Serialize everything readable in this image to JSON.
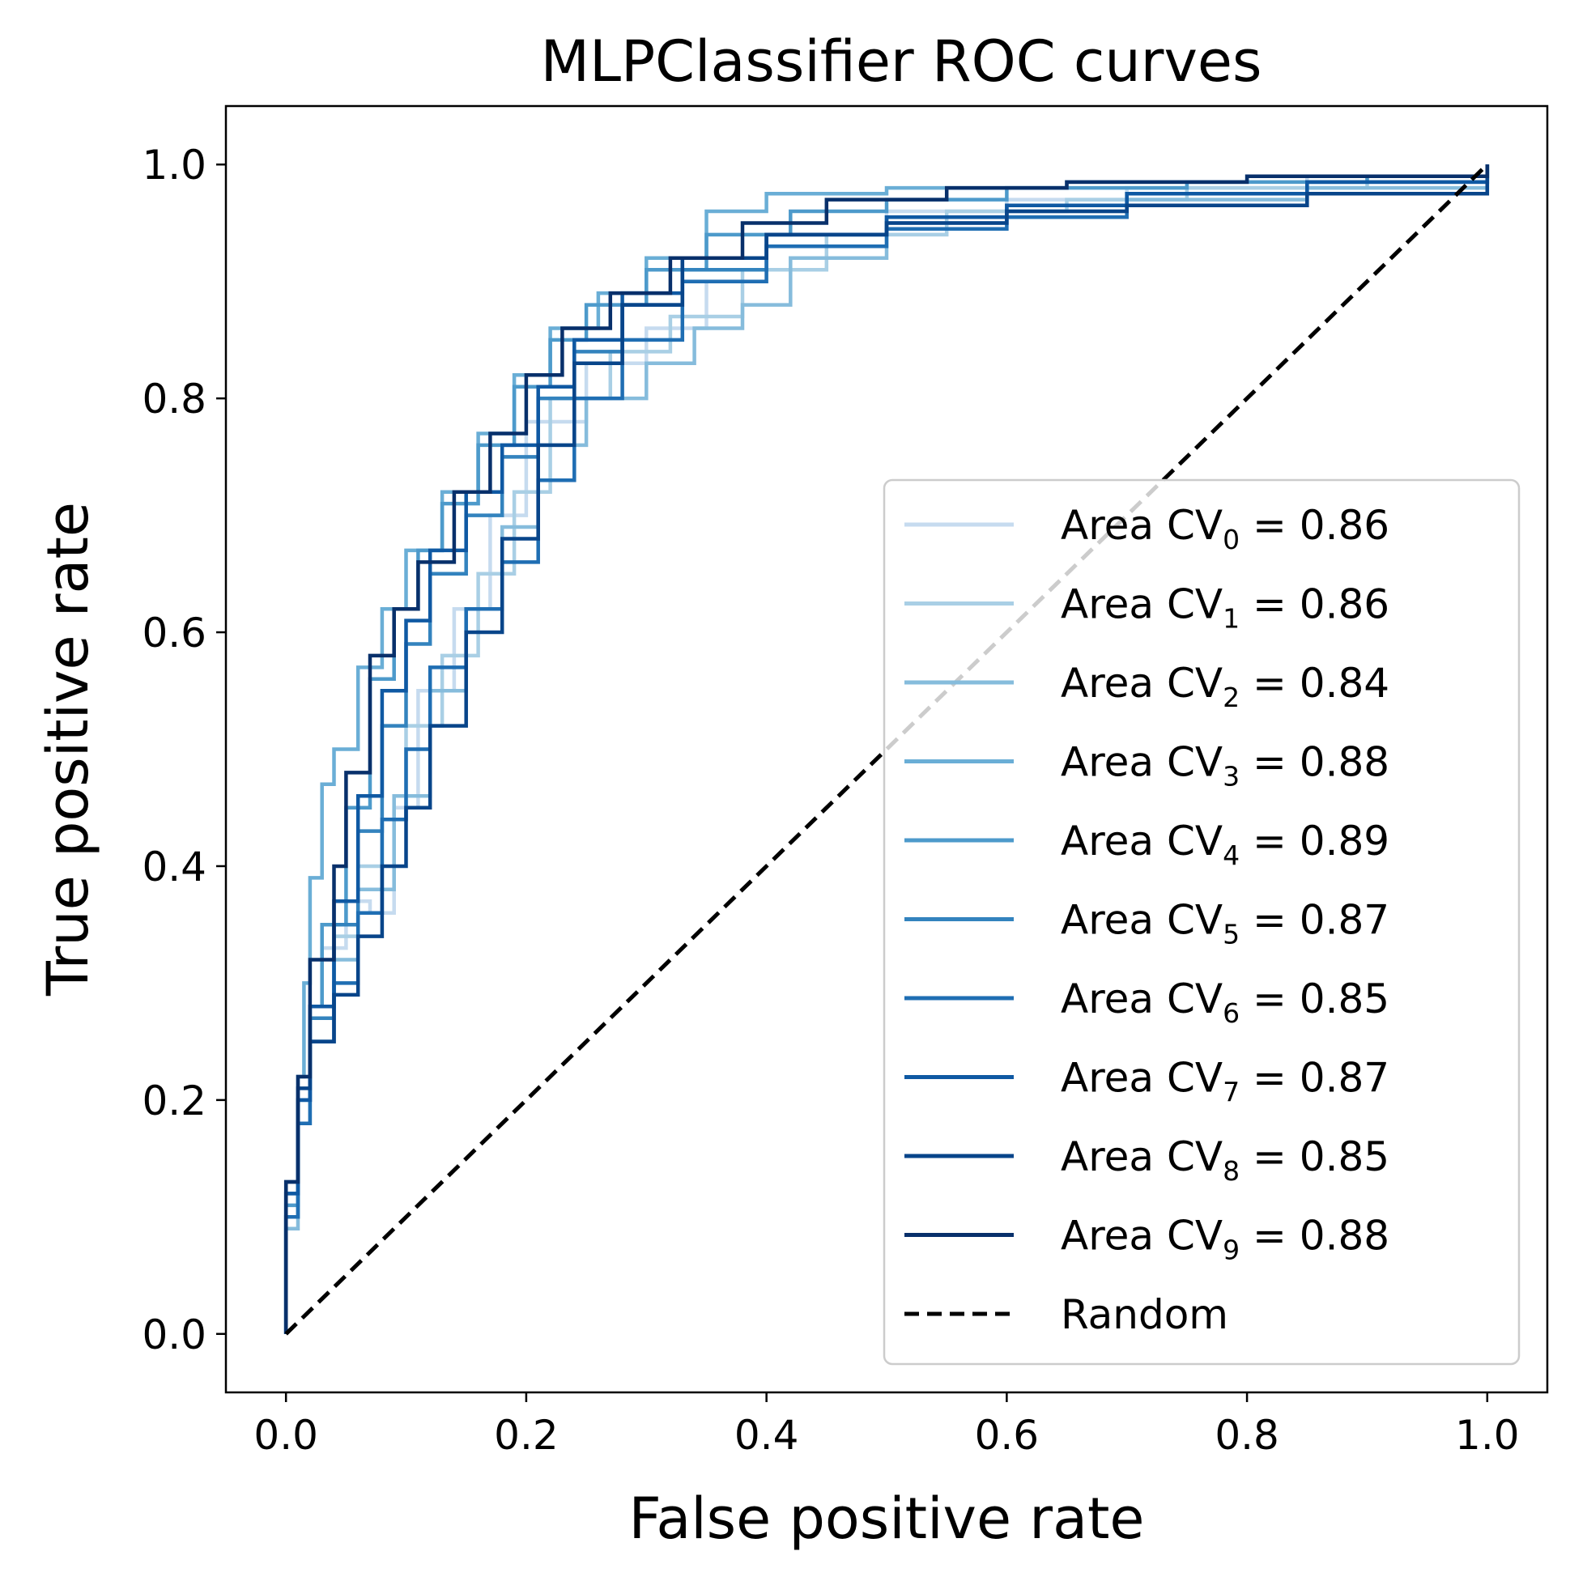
{
  "chart_data": {
    "type": "line",
    "title": "MLPClassifier ROC curves",
    "xlabel": "False positive rate",
    "ylabel": "True positive rate",
    "xlim": [
      -0.05,
      1.05
    ],
    "ylim": [
      -0.05,
      1.05
    ],
    "xticks": [
      "0.0",
      "0.2",
      "0.4",
      "0.6",
      "0.8",
      "1.0"
    ],
    "yticks": [
      "0.0",
      "0.2",
      "0.4",
      "0.6",
      "0.8",
      "1.0"
    ],
    "grid": false,
    "legend_position": "lower-right",
    "series": [
      {
        "name": "Area CV",
        "index": "0",
        "value_text": " = 0.86",
        "color": "#c6dbef",
        "x": [
          0,
          0,
          0.01,
          0.02,
          0.03,
          0.05,
          0.07,
          0.09,
          0.11,
          0.14,
          0.17,
          0.2,
          0.25,
          0.3,
          0.35,
          0.4,
          0.5,
          0.6,
          0.7,
          0.85,
          1.0
        ],
        "y": [
          0,
          0.1,
          0.2,
          0.28,
          0.33,
          0.37,
          0.36,
          0.45,
          0.55,
          0.62,
          0.7,
          0.78,
          0.83,
          0.86,
          0.9,
          0.94,
          0.96,
          0.97,
          0.98,
          0.99,
          1.0
        ]
      },
      {
        "name": "Area CV",
        "index": "1",
        "value_text": " = 0.86",
        "color": "#a9cfe5",
        "x": [
          0,
          0,
          0.01,
          0.02,
          0.04,
          0.06,
          0.08,
          0.1,
          0.13,
          0.16,
          0.19,
          0.22,
          0.27,
          0.32,
          0.38,
          0.45,
          0.55,
          0.65,
          0.75,
          0.9,
          1.0
        ],
        "y": [
          0,
          0.12,
          0.22,
          0.27,
          0.34,
          0.4,
          0.44,
          0.52,
          0.58,
          0.65,
          0.72,
          0.8,
          0.84,
          0.87,
          0.91,
          0.94,
          0.96,
          0.97,
          0.98,
          0.99,
          1.0
        ]
      },
      {
        "name": "Area CV",
        "index": "2",
        "value_text": " = 0.84",
        "color": "#86bcdc",
        "x": [
          0,
          0,
          0.01,
          0.02,
          0.04,
          0.06,
          0.09,
          0.12,
          0.15,
          0.18,
          0.21,
          0.25,
          0.3,
          0.34,
          0.38,
          0.42,
          0.5,
          0.6,
          0.7,
          0.85,
          1.0
        ],
        "y": [
          0,
          0.09,
          0.18,
          0.25,
          0.32,
          0.38,
          0.46,
          0.55,
          0.62,
          0.69,
          0.76,
          0.8,
          0.83,
          0.86,
          0.88,
          0.92,
          0.95,
          0.96,
          0.97,
          0.98,
          1.0
        ]
      },
      {
        "name": "Area CV",
        "index": "3",
        "value_text": " = 0.88",
        "color": "#6aaed6",
        "x": [
          0,
          0,
          0.01,
          0.015,
          0.02,
          0.03,
          0.04,
          0.06,
          0.08,
          0.1,
          0.13,
          0.16,
          0.19,
          0.22,
          0.26,
          0.3,
          0.35,
          0.4,
          0.5,
          0.65,
          0.8,
          1.0
        ],
        "y": [
          0,
          0.12,
          0.22,
          0.3,
          0.39,
          0.47,
          0.5,
          0.57,
          0.62,
          0.67,
          0.72,
          0.77,
          0.82,
          0.86,
          0.89,
          0.92,
          0.96,
          0.975,
          0.98,
          0.985,
          0.99,
          1.0
        ]
      },
      {
        "name": "Area CV",
        "index": "4",
        "value_text": " = 0.89",
        "color": "#4d9acb",
        "x": [
          0,
          0,
          0.01,
          0.02,
          0.03,
          0.05,
          0.07,
          0.09,
          0.11,
          0.13,
          0.16,
          0.19,
          0.22,
          0.25,
          0.3,
          0.35,
          0.42,
          0.5,
          0.6,
          0.75,
          0.9,
          1.0
        ],
        "y": [
          0,
          0.11,
          0.2,
          0.28,
          0.35,
          0.45,
          0.56,
          0.62,
          0.67,
          0.71,
          0.76,
          0.81,
          0.85,
          0.88,
          0.91,
          0.94,
          0.96,
          0.97,
          0.98,
          0.985,
          0.99,
          1.0
        ]
      },
      {
        "name": "Area CV",
        "index": "5",
        "value_text": " = 0.87",
        "color": "#3383be",
        "x": [
          0,
          0,
          0.01,
          0.02,
          0.04,
          0.06,
          0.08,
          0.1,
          0.12,
          0.15,
          0.18,
          0.21,
          0.24,
          0.28,
          0.33,
          0.4,
          0.5,
          0.6,
          0.7,
          0.85,
          1.0
        ],
        "y": [
          0,
          0.1,
          0.2,
          0.27,
          0.35,
          0.43,
          0.52,
          0.59,
          0.65,
          0.7,
          0.75,
          0.8,
          0.84,
          0.88,
          0.91,
          0.94,
          0.955,
          0.965,
          0.975,
          0.985,
          1.0
        ]
      },
      {
        "name": "Area CV",
        "index": "6",
        "value_text": " = 0.85",
        "color": "#1f6eb3",
        "x": [
          0,
          0,
          0.01,
          0.02,
          0.04,
          0.06,
          0.08,
          0.1,
          0.12,
          0.15,
          0.18,
          0.21,
          0.24,
          0.28,
          0.33,
          0.4,
          0.5,
          0.6,
          0.7,
          0.85,
          1.0
        ],
        "y": [
          0,
          0.1,
          0.18,
          0.25,
          0.3,
          0.36,
          0.44,
          0.5,
          0.57,
          0.62,
          0.66,
          0.73,
          0.8,
          0.85,
          0.9,
          0.93,
          0.945,
          0.955,
          0.965,
          0.975,
          1.0
        ]
      },
      {
        "name": "Area CV",
        "index": "7",
        "value_text": " = 0.87",
        "color": "#0f59a3",
        "x": [
          0,
          0,
          0.01,
          0.02,
          0.04,
          0.06,
          0.08,
          0.1,
          0.12,
          0.15,
          0.18,
          0.21,
          0.24,
          0.28,
          0.33,
          0.4,
          0.5,
          0.6,
          0.7,
          0.85,
          1.0
        ],
        "y": [
          0,
          0.12,
          0.2,
          0.28,
          0.37,
          0.46,
          0.55,
          0.61,
          0.67,
          0.72,
          0.76,
          0.81,
          0.85,
          0.89,
          0.92,
          0.94,
          0.955,
          0.965,
          0.975,
          0.985,
          1.0
        ]
      },
      {
        "name": "Area CV",
        "index": "8",
        "value_text": " = 0.85",
        "color": "#08458a",
        "x": [
          0,
          0,
          0.01,
          0.02,
          0.04,
          0.06,
          0.08,
          0.1,
          0.12,
          0.15,
          0.18,
          0.21,
          0.24,
          0.28,
          0.33,
          0.4,
          0.5,
          0.6,
          0.7,
          0.85,
          1.0
        ],
        "y": [
          0,
          0.13,
          0.21,
          0.25,
          0.29,
          0.34,
          0.4,
          0.45,
          0.52,
          0.6,
          0.68,
          0.76,
          0.83,
          0.88,
          0.92,
          0.94,
          0.95,
          0.96,
          0.965,
          0.975,
          1.0
        ]
      },
      {
        "name": "Area CV",
        "index": "9",
        "value_text": " = 0.88",
        "color": "#08306b",
        "x": [
          0,
          0,
          0.01,
          0.02,
          0.04,
          0.05,
          0.07,
          0.09,
          0.11,
          0.14,
          0.17,
          0.2,
          0.23,
          0.27,
          0.32,
          0.38,
          0.45,
          0.55,
          0.65,
          0.8,
          1.0
        ],
        "y": [
          0,
          0.13,
          0.22,
          0.32,
          0.4,
          0.48,
          0.58,
          0.62,
          0.66,
          0.72,
          0.77,
          0.82,
          0.86,
          0.89,
          0.92,
          0.95,
          0.97,
          0.98,
          0.985,
          0.99,
          1.0
        ]
      }
    ],
    "reference_line": {
      "name": "Random",
      "x": [
        0,
        1
      ],
      "y": [
        0,
        1
      ],
      "color": "#000000",
      "style": "dashed"
    }
  }
}
